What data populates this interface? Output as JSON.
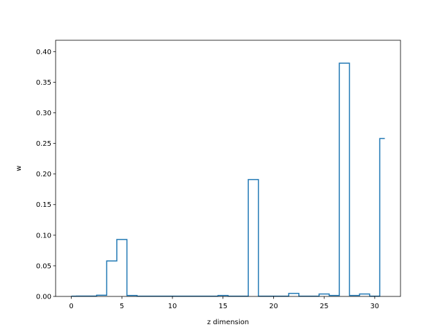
{
  "chart_data": {
    "type": "step",
    "xlabel": "z dimension",
    "ylabel": "w",
    "xlim": [
      -1.55,
      32.55
    ],
    "ylim": [
      0,
      0.4185
    ],
    "xticks": [
      0,
      5,
      10,
      15,
      20,
      25,
      30
    ],
    "xtick_labels": [
      "0",
      "5",
      "10",
      "15",
      "20",
      "25",
      "30"
    ],
    "yticks": [
      0.0,
      0.05,
      0.1,
      0.15,
      0.2,
      0.25,
      0.3,
      0.35,
      0.4
    ],
    "ytick_labels": [
      "0.00",
      "0.05",
      "0.10",
      "0.15",
      "0.20",
      "0.25",
      "0.30",
      "0.35",
      "0.40"
    ],
    "grid": false,
    "line_color": "#1f77b4",
    "x": [
      0,
      1,
      2,
      3,
      4,
      5,
      6,
      7,
      8,
      9,
      10,
      11,
      12,
      13,
      14,
      15,
      16,
      17,
      18,
      19,
      20,
      21,
      22,
      23,
      24,
      25,
      26,
      27,
      28,
      29,
      30,
      31
    ],
    "values": [
      0.0004,
      0.0005,
      0.0005,
      0.002,
      0.058,
      0.093,
      0.0015,
      0.0004,
      0.0004,
      0.0004,
      0.0004,
      0.0004,
      0.0004,
      0.0004,
      0.0004,
      0.0015,
      0.0004,
      0.0004,
      0.191,
      0.0004,
      0.0004,
      0.0004,
      0.005,
      0.0004,
      0.0004,
      0.004,
      0.0015,
      0.381,
      0.0015,
      0.004,
      0.0004,
      0.258
    ]
  }
}
